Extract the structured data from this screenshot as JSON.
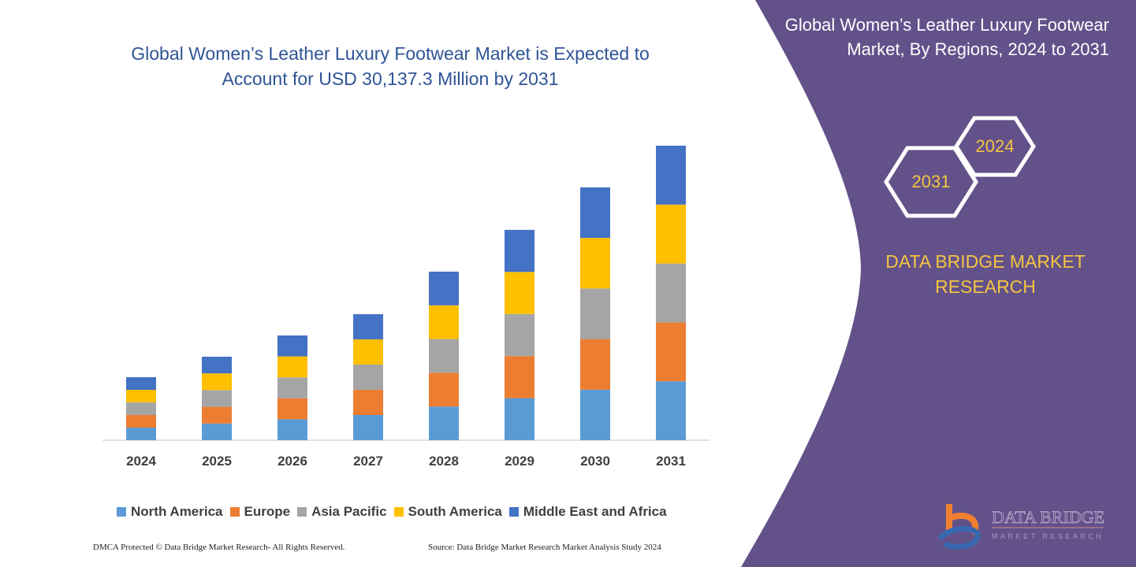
{
  "header": {
    "title": "Global Women’s Leather Luxury Footwear Market is Expected to Account for USD 30,137.3 Million by 2031",
    "side_title": "Global Women’s Leather Luxury Footwear Market, By Regions, 2024 to 2031",
    "hex_years": [
      "2024",
      "2031"
    ],
    "brand": "DATA BRIDGE MARKET RESEARCH"
  },
  "footer": {
    "left": "DMCA Protected © Data Bridge Market Research-  All Rights Reserved.",
    "right": "Source: Data Bridge Market Research  Market Analysis Study 2024"
  },
  "logo": {
    "text": "DATA BRIDGE",
    "subtext": "MARKET RESEARCH"
  },
  "colors": {
    "panel": "#63518a",
    "accent": "#f4c542",
    "title": "#2f5496"
  },
  "chart_data": {
    "type": "bar",
    "stacked": true,
    "title": "",
    "xlabel": "",
    "ylabel": "",
    "ylim": [
      0,
      30137.3
    ],
    "grid": false,
    "legend_position": "bottom",
    "categories": [
      "2024",
      "2025",
      "2026",
      "2027",
      "2028",
      "2029",
      "2030",
      "2031"
    ],
    "series": [
      {
        "name": "North America",
        "color": "#5b9bd5",
        "values": [
          1289,
          1709,
          2144,
          2579,
          3450,
          4304,
          5175,
          6027
        ]
      },
      {
        "name": "Europe",
        "color": "#ed7d31",
        "values": [
          1289,
          1709,
          2144,
          2579,
          3450,
          4304,
          5175,
          6027
        ]
      },
      {
        "name": "Asia Pacific",
        "color": "#a5a5a5",
        "values": [
          1289,
          1709,
          2144,
          2579,
          3450,
          4304,
          5175,
          6028
        ]
      },
      {
        "name": "South America",
        "color": "#ffc000",
        "values": [
          1289,
          1709,
          2144,
          2580,
          3450,
          4305,
          5175,
          6027
        ]
      },
      {
        "name": "Middle East and Africa",
        "color": "#4472c4",
        "values": [
          1290,
          1708,
          2144,
          2580,
          3449,
          4305,
          5174,
          6028
        ]
      }
    ]
  }
}
